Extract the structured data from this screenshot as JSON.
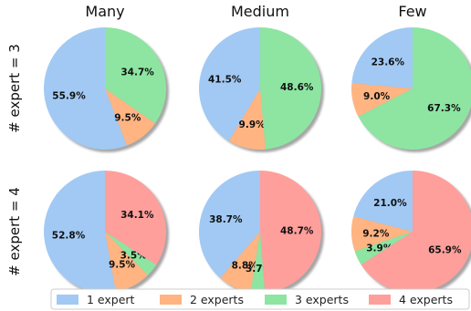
{
  "chart_data": {
    "type": "pie",
    "column_titles": [
      "Many",
      "Medium",
      "Few"
    ],
    "row_labels": [
      "# expert = 3",
      "# expert = 4"
    ],
    "legend": {
      "placement": "bottom",
      "entries": [
        {
          "name": "1 expert",
          "color": "#a1c9f4"
        },
        {
          "name": "2 experts",
          "color": "#ffb482"
        },
        {
          "name": "3 experts",
          "color": "#8de5a1"
        },
        {
          "name": "4 experts",
          "color": "#ff9f9b"
        }
      ]
    },
    "pies": [
      {
        "row": 0,
        "col": 0,
        "slices": [
          {
            "name": "1 expert",
            "value": 55.9,
            "label": "55.9%"
          },
          {
            "name": "2 experts",
            "value": 9.5,
            "label": "9.5%"
          },
          {
            "name": "3 experts",
            "value": 34.7,
            "label": "34.7%"
          }
        ]
      },
      {
        "row": 0,
        "col": 1,
        "slices": [
          {
            "name": "1 expert",
            "value": 41.5,
            "label": "41.5%"
          },
          {
            "name": "2 experts",
            "value": 9.9,
            "label": "9.9%"
          },
          {
            "name": "3 experts",
            "value": 48.6,
            "label": "48.6%"
          }
        ]
      },
      {
        "row": 0,
        "col": 2,
        "slices": [
          {
            "name": "1 expert",
            "value": 23.6,
            "label": "23.6%"
          },
          {
            "name": "2 experts",
            "value": 9.0,
            "label": "9.0%"
          },
          {
            "name": "3 experts",
            "value": 67.3,
            "label": "67.3%"
          }
        ]
      },
      {
        "row": 1,
        "col": 0,
        "slices": [
          {
            "name": "1 expert",
            "value": 52.8,
            "label": "52.8%"
          },
          {
            "name": "2 experts",
            "value": 9.5,
            "label": "9.5%"
          },
          {
            "name": "3 experts",
            "value": 3.5,
            "label": "3.5%"
          },
          {
            "name": "4 experts",
            "value": 34.1,
            "label": "34.1%"
          }
        ]
      },
      {
        "row": 1,
        "col": 1,
        "slices": [
          {
            "name": "1 expert",
            "value": 38.7,
            "label": "38.7%"
          },
          {
            "name": "2 experts",
            "value": 8.8,
            "label": "8.8%"
          },
          {
            "name": "3 experts",
            "value": 3.7,
            "label": "3.7%"
          },
          {
            "name": "4 experts",
            "value": 48.7,
            "label": "48.7%"
          }
        ]
      },
      {
        "row": 1,
        "col": 2,
        "slices": [
          {
            "name": "1 expert",
            "value": 21.0,
            "label": "21.0%"
          },
          {
            "name": "2 experts",
            "value": 9.2,
            "label": "9.2%"
          },
          {
            "name": "3 experts",
            "value": 3.9,
            "label": "3.9%"
          },
          {
            "name": "4 experts",
            "value": 65.9,
            "label": "65.9%"
          }
        ]
      }
    ]
  }
}
